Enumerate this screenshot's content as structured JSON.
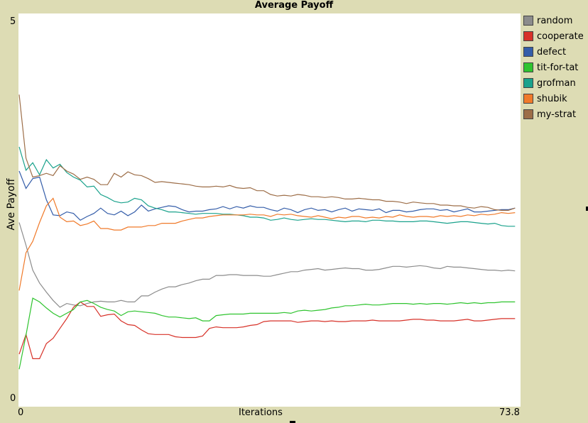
{
  "chart_data": {
    "type": "line",
    "title": "Average Payoff",
    "xlabel": "Iterations",
    "ylabel": "Ave Payoff",
    "xlim": [
      0,
      73.8
    ],
    "ylim": [
      0,
      5
    ],
    "x_tick_labels": [
      "0",
      "73.8"
    ],
    "y_tick_labels": [
      "0",
      "5"
    ],
    "legend_position": "right",
    "x": [
      0,
      1,
      2,
      3,
      4,
      5,
      6,
      7,
      8,
      9,
      10,
      11,
      12,
      13,
      14,
      15,
      16,
      17,
      18,
      19,
      20,
      21,
      22,
      23,
      24,
      25,
      26,
      27,
      28,
      29,
      30,
      31,
      32,
      33,
      34,
      35,
      36,
      37,
      38,
      39,
      40,
      41,
      42,
      43,
      44,
      45,
      46,
      47,
      48,
      49,
      50,
      51,
      52,
      53,
      54,
      55,
      56,
      57,
      58,
      59,
      60,
      61,
      62,
      63,
      64,
      65,
      66,
      67,
      68,
      69,
      70,
      71,
      72,
      73
    ],
    "series": [
      {
        "name": "random",
        "color": "#8c8c8c",
        "values": [
          2.35,
          2.05,
          1.72,
          1.55,
          1.43,
          1.32,
          1.23,
          1.28,
          1.26,
          1.25,
          1.28,
          1.3,
          1.31,
          1.3,
          1.3,
          1.32,
          1.3,
          1.3,
          1.38,
          1.38,
          1.43,
          1.47,
          1.5,
          1.5,
          1.53,
          1.55,
          1.58,
          1.6,
          1.6,
          1.65,
          1.65,
          1.66,
          1.66,
          1.65,
          1.65,
          1.65,
          1.64,
          1.64,
          1.66,
          1.68,
          1.7,
          1.7,
          1.72,
          1.73,
          1.74,
          1.72,
          1.73,
          1.74,
          1.75,
          1.74,
          1.74,
          1.72,
          1.72,
          1.73,
          1.75,
          1.77,
          1.77,
          1.76,
          1.77,
          1.78,
          1.77,
          1.75,
          1.74,
          1.77,
          1.76,
          1.76,
          1.75,
          1.74,
          1.73,
          1.72,
          1.72,
          1.71,
          1.72,
          1.71
        ]
      },
      {
        "name": "cooperate",
        "color": "#d73229",
        "values": [
          0.61,
          0.87,
          0.55,
          0.55,
          0.75,
          0.82,
          0.95,
          1.08,
          1.23,
          1.3,
          1.24,
          1.24,
          1.11,
          1.13,
          1.14,
          1.05,
          1.0,
          0.99,
          0.93,
          0.88,
          0.87,
          0.87,
          0.87,
          0.84,
          0.83,
          0.83,
          0.83,
          0.85,
          0.95,
          0.97,
          0.96,
          0.96,
          0.96,
          0.97,
          0.99,
          1.0,
          1.04,
          1.05,
          1.05,
          1.05,
          1.05,
          1.03,
          1.04,
          1.05,
          1.05,
          1.04,
          1.05,
          1.04,
          1.04,
          1.05,
          1.05,
          1.05,
          1.06,
          1.05,
          1.05,
          1.05,
          1.05,
          1.06,
          1.07,
          1.07,
          1.06,
          1.06,
          1.05,
          1.05,
          1.05,
          1.06,
          1.07,
          1.05,
          1.05,
          1.06,
          1.07,
          1.08,
          1.08,
          1.08
        ]
      },
      {
        "name": "defect",
        "color": "#345da9",
        "values": [
          3.03,
          2.8,
          2.93,
          2.95,
          2.65,
          2.45,
          2.44,
          2.49,
          2.47,
          2.38,
          2.43,
          2.47,
          2.54,
          2.47,
          2.45,
          2.5,
          2.44,
          2.49,
          2.58,
          2.5,
          2.53,
          2.55,
          2.57,
          2.56,
          2.52,
          2.49,
          2.5,
          2.5,
          2.52,
          2.53,
          2.56,
          2.53,
          2.56,
          2.54,
          2.57,
          2.55,
          2.55,
          2.52,
          2.5,
          2.54,
          2.52,
          2.48,
          2.52,
          2.54,
          2.51,
          2.52,
          2.49,
          2.52,
          2.54,
          2.5,
          2.53,
          2.52,
          2.51,
          2.53,
          2.48,
          2.51,
          2.51,
          2.49,
          2.5,
          2.52,
          2.53,
          2.53,
          2.51,
          2.52,
          2.49,
          2.51,
          2.53,
          2.49,
          2.49,
          2.5,
          2.51,
          2.52,
          2.52,
          2.54
        ]
      },
      {
        "name": "tit-for-tat",
        "color": "#2fc42f",
        "values": [
          0.41,
          0.86,
          1.35,
          1.3,
          1.22,
          1.15,
          1.1,
          1.15,
          1.2,
          1.3,
          1.32,
          1.28,
          1.23,
          1.2,
          1.18,
          1.12,
          1.17,
          1.18,
          1.17,
          1.16,
          1.15,
          1.12,
          1.1,
          1.1,
          1.09,
          1.08,
          1.09,
          1.05,
          1.05,
          1.12,
          1.13,
          1.14,
          1.14,
          1.14,
          1.15,
          1.15,
          1.15,
          1.15,
          1.15,
          1.16,
          1.15,
          1.18,
          1.19,
          1.18,
          1.19,
          1.2,
          1.22,
          1.23,
          1.25,
          1.25,
          1.26,
          1.27,
          1.26,
          1.26,
          1.27,
          1.28,
          1.28,
          1.28,
          1.27,
          1.28,
          1.27,
          1.28,
          1.28,
          1.27,
          1.28,
          1.29,
          1.28,
          1.29,
          1.28,
          1.29,
          1.29,
          1.3,
          1.3,
          1.3
        ]
      },
      {
        "name": "grofman",
        "color": "#1aa28c",
        "values": [
          3.35,
          3.04,
          3.14,
          2.98,
          3.18,
          3.07,
          3.12,
          3.01,
          2.95,
          2.91,
          2.82,
          2.83,
          2.72,
          2.68,
          2.63,
          2.61,
          2.62,
          2.67,
          2.65,
          2.57,
          2.54,
          2.52,
          2.49,
          2.49,
          2.48,
          2.47,
          2.46,
          2.47,
          2.47,
          2.47,
          2.46,
          2.46,
          2.45,
          2.44,
          2.42,
          2.42,
          2.41,
          2.38,
          2.39,
          2.41,
          2.39,
          2.38,
          2.39,
          2.4,
          2.39,
          2.39,
          2.38,
          2.37,
          2.36,
          2.37,
          2.37,
          2.36,
          2.38,
          2.38,
          2.37,
          2.37,
          2.36,
          2.36,
          2.36,
          2.37,
          2.37,
          2.36,
          2.35,
          2.34,
          2.35,
          2.36,
          2.36,
          2.35,
          2.34,
          2.33,
          2.34,
          2.31,
          2.3,
          2.3
        ]
      },
      {
        "name": "shubik",
        "color": "#f07a2a",
        "values": [
          1.45,
          1.95,
          2.1,
          2.35,
          2.57,
          2.67,
          2.42,
          2.36,
          2.37,
          2.31,
          2.33,
          2.37,
          2.27,
          2.27,
          2.25,
          2.25,
          2.29,
          2.29,
          2.29,
          2.31,
          2.31,
          2.34,
          2.34,
          2.34,
          2.37,
          2.39,
          2.41,
          2.41,
          2.43,
          2.44,
          2.45,
          2.45,
          2.45,
          2.45,
          2.46,
          2.45,
          2.45,
          2.43,
          2.46,
          2.45,
          2.46,
          2.44,
          2.43,
          2.42,
          2.44,
          2.42,
          2.4,
          2.42,
          2.41,
          2.43,
          2.43,
          2.41,
          2.42,
          2.41,
          2.43,
          2.42,
          2.45,
          2.43,
          2.42,
          2.43,
          2.43,
          2.42,
          2.44,
          2.43,
          2.44,
          2.43,
          2.45,
          2.44,
          2.46,
          2.45,
          2.46,
          2.48,
          2.47,
          2.48
        ]
      },
      {
        "name": "my-strat",
        "color": "#9d6e48",
        "values": [
          4.04,
          3.2,
          2.95,
          2.97,
          3.0,
          2.97,
          3.1,
          3.03,
          2.99,
          2.92,
          2.95,
          2.92,
          2.85,
          2.85,
          3.0,
          2.95,
          3.02,
          2.98,
          2.97,
          2.93,
          2.88,
          2.89,
          2.88,
          2.87,
          2.86,
          2.85,
          2.83,
          2.82,
          2.82,
          2.83,
          2.82,
          2.84,
          2.81,
          2.8,
          2.81,
          2.77,
          2.77,
          2.72,
          2.7,
          2.71,
          2.7,
          2.72,
          2.71,
          2.69,
          2.69,
          2.68,
          2.69,
          2.68,
          2.66,
          2.66,
          2.67,
          2.66,
          2.65,
          2.65,
          2.63,
          2.63,
          2.62,
          2.6,
          2.62,
          2.61,
          2.6,
          2.6,
          2.58,
          2.58,
          2.57,
          2.57,
          2.55,
          2.54,
          2.56,
          2.55,
          2.52,
          2.51,
          2.51,
          2.54
        ]
      }
    ]
  }
}
